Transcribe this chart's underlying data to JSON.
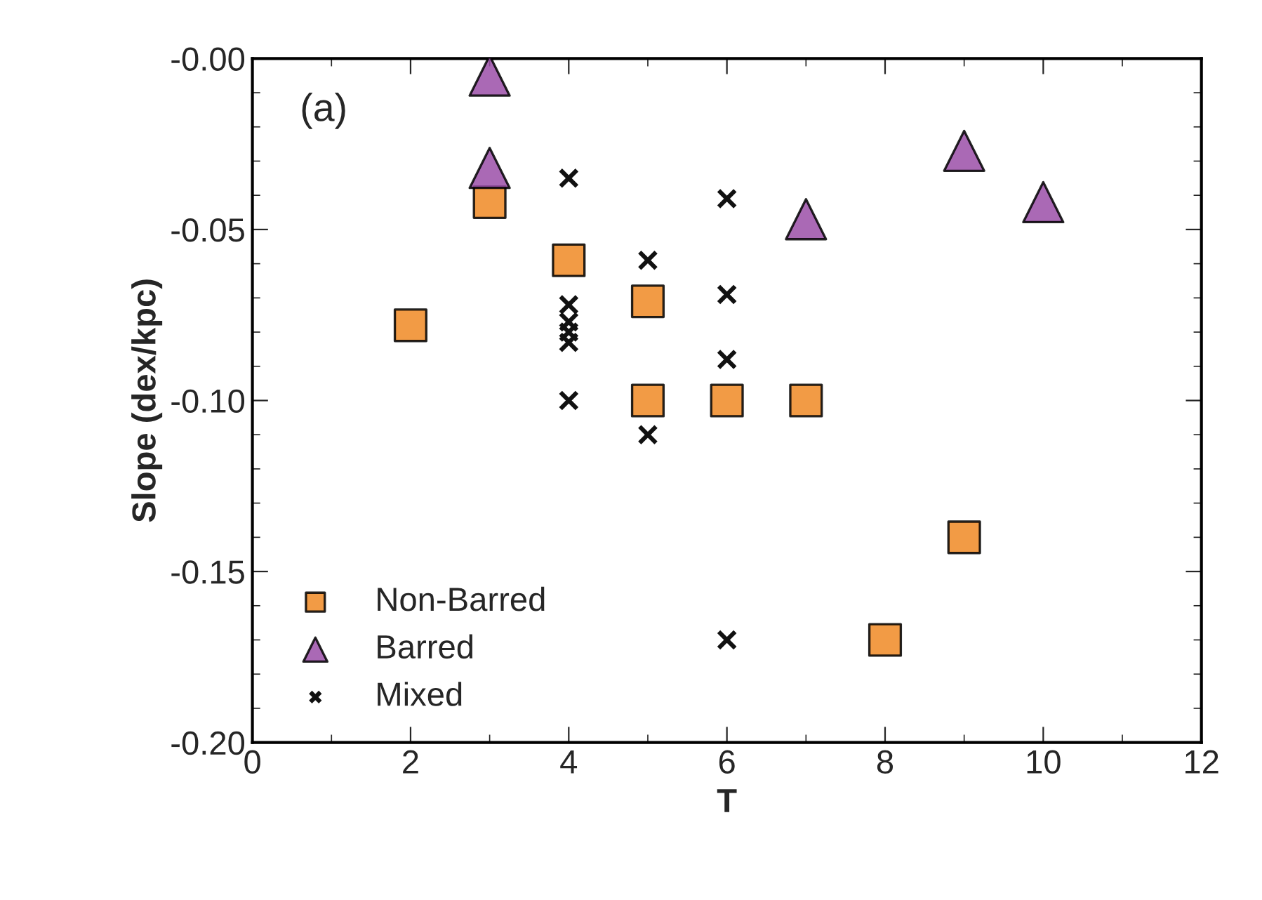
{
  "chart_data": {
    "type": "scatter",
    "xlabel": "T",
    "ylabel": "Slope (dex/kpc)",
    "annotations": [
      "(a)"
    ],
    "series": [
      {
        "name": "Non-Barred",
        "marker": "square",
        "color": "#f08a24",
        "x": [
          2,
          3,
          4,
          5,
          5,
          6,
          7,
          8,
          9
        ],
        "values": [
          -0.078,
          -0.042,
          -0.059,
          -0.071,
          -0.1,
          -0.1,
          -0.1,
          -0.17,
          -0.14
        ]
      },
      {
        "name": "Barred",
        "marker": "triangle",
        "color": "#9b4fa8",
        "x": [
          3,
          3,
          7,
          9,
          10
        ],
        "values": [
          -0.005,
          -0.032,
          -0.047,
          -0.027,
          -0.042
        ]
      },
      {
        "name": "Mixed",
        "marker": "cross",
        "color": "#111111",
        "x": [
          4,
          4,
          4,
          4,
          4,
          4,
          5,
          5,
          6,
          6,
          6,
          6
        ],
        "values": [
          -0.035,
          -0.072,
          -0.077,
          -0.08,
          -0.083,
          -0.1,
          -0.059,
          -0.11,
          -0.041,
          -0.069,
          -0.088,
          -0.17
        ]
      }
    ],
    "xlim": [
      0,
      12
    ],
    "xticks": [
      0,
      2,
      4,
      6,
      8,
      10,
      12
    ],
    "ylim": [
      -0.2,
      0.0
    ],
    "yticks": [
      {
        "value": -0.2,
        "label": "-0.20"
      },
      {
        "value": -0.15,
        "label": "-0.15"
      },
      {
        "value": -0.1,
        "label": "-0.10"
      },
      {
        "value": -0.05,
        "label": "-0.05"
      },
      {
        "value": 0.0,
        "label": "-0.00"
      }
    ],
    "grid": false,
    "legend": "bottom left"
  }
}
